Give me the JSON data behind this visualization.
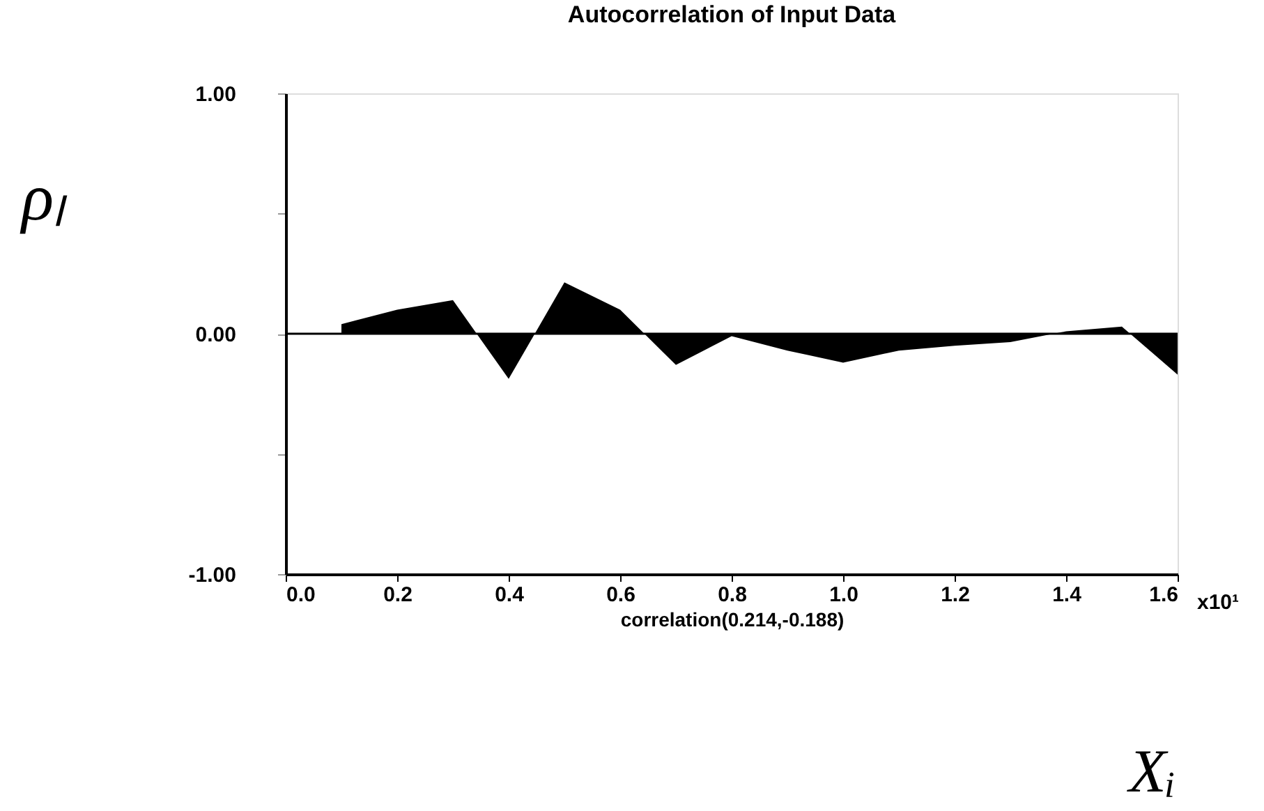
{
  "chart_data": {
    "type": "area",
    "title": "Autocorrelation of Input Data",
    "xlabel": "correlation(0.214,-0.188)",
    "ylabel": "ρₗ",
    "annotations": [
      "Xᵢ",
      "x10¹"
    ],
    "x": [
      0.1,
      0.2,
      0.3,
      0.4,
      0.5,
      0.6,
      0.7,
      0.8,
      0.9,
      1.0,
      1.1,
      1.2,
      1.3,
      1.4,
      1.5,
      1.6
    ],
    "values": [
      0.04,
      0.1,
      0.14,
      -0.188,
      0.214,
      0.1,
      -0.13,
      -0.01,
      -0.07,
      -0.12,
      -0.07,
      -0.05,
      -0.035,
      0.01,
      0.03,
      -0.17
    ],
    "color": "#000000",
    "xlim": [
      0,
      1.6
    ],
    "ylim": [
      -1,
      1
    ],
    "xticks": [
      {
        "value": 0,
        "label": "0.0"
      },
      0.2,
      0.4,
      0.6,
      0.8,
      {
        "value": 1,
        "label": "1.0"
      },
      1.2,
      1.4,
      1.6
    ],
    "yticks": [
      {
        "value": -1,
        "label": "-1.00"
      },
      {
        "value": -0.5,
        "label": null
      },
      {
        "value": 0,
        "label": "0.00"
      },
      {
        "value": 0.5,
        "label": null
      },
      {
        "value": 1,
        "label": "1.00"
      }
    ],
    "ref_lines": [
      {
        "axis": "y",
        "value": 0,
        "color": "#000000"
      }
    ]
  }
}
